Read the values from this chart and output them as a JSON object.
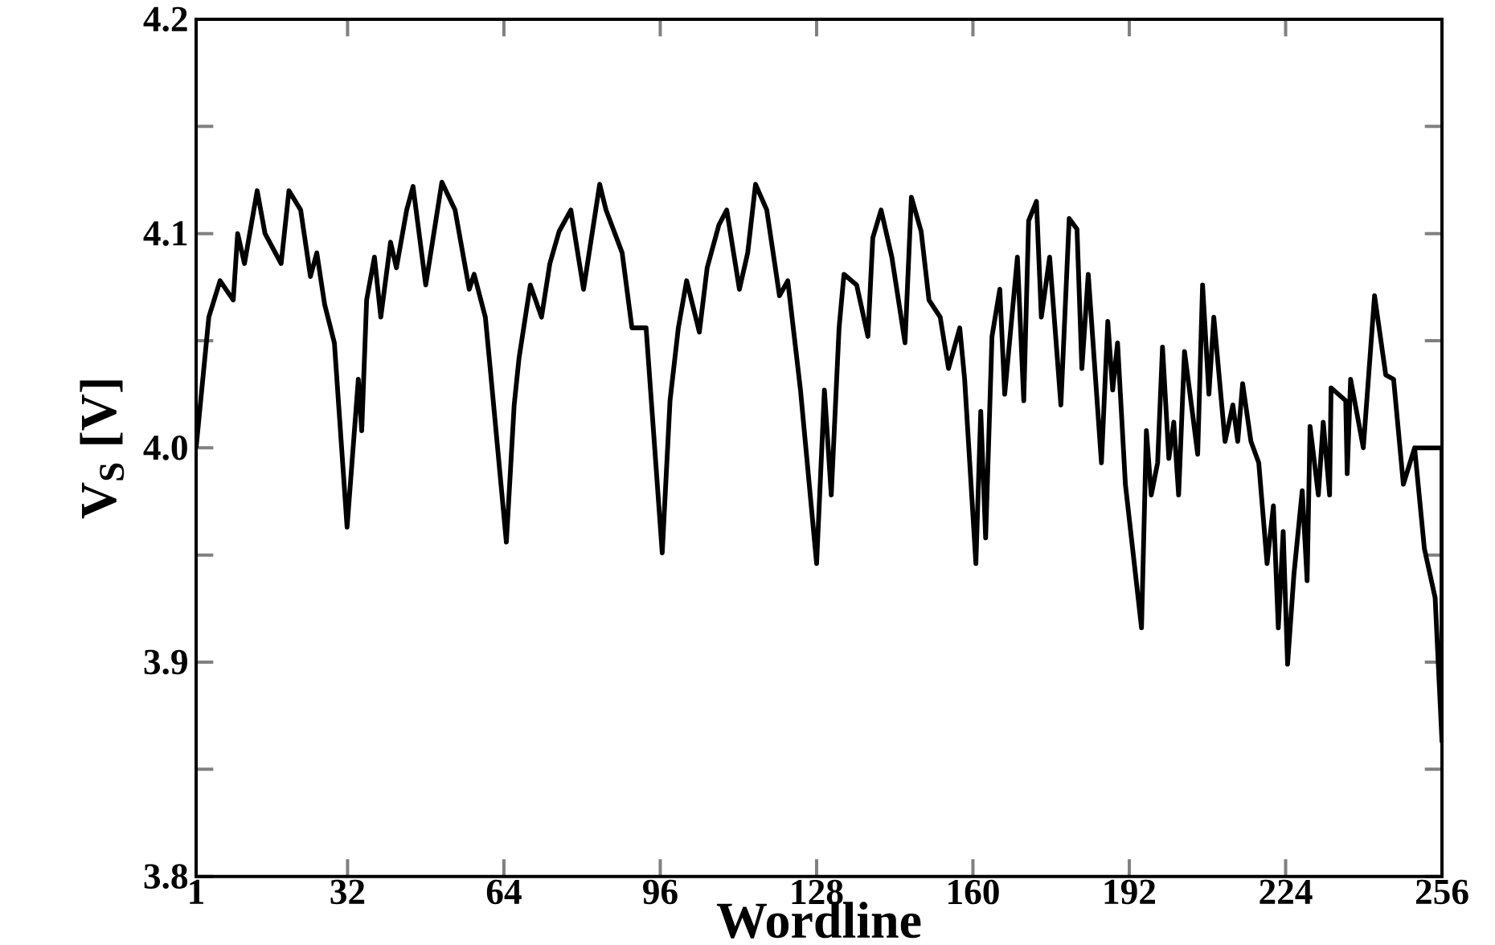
{
  "chart_data": {
    "type": "line",
    "xlabel": "Wordline",
    "ylabel": "V$_{S}$ [V]",
    "xlim": [
      1,
      256
    ],
    "ylim": [
      3.8,
      4.2
    ],
    "xticks": [
      1,
      32,
      64,
      96,
      128,
      160,
      192,
      224,
      256
    ],
    "yticks": [
      3.8,
      {
        "value": 3.85,
        "label": null
      },
      3.9,
      {
        "value": 3.95,
        "label": null
      },
      {
        "value": 4.0,
        "label": "4.0"
      },
      {
        "value": 4.05,
        "label": null
      },
      4.1,
      {
        "value": 4.15,
        "label": null
      },
      4.2
    ],
    "grid": false,
    "marker": "none",
    "line_style": "solid",
    "series": [
      {
        "color": "#000000",
        "x": [
          1,
          3.6,
          5.9,
          8.6,
          9.5,
          10.9,
          13.5,
          15.1,
          18.4,
          20,
          22.4,
          24.4,
          25.7,
          27.3,
          29.3,
          31.9,
          34.2,
          34.9,
          35.9,
          37.5,
          38.8,
          40.8,
          42,
          44.1,
          45.4,
          48,
          51.3,
          54,
          56.9,
          57.9,
          60.2,
          61.2,
          64.5,
          66.1,
          67.1,
          69.4,
          71.7,
          73.4,
          75.3,
          77.7,
          80.3,
          83.6,
          84.9,
          88.2,
          90.2,
          93.1,
          96.4,
          98,
          99.7,
          101.4,
          104,
          105.6,
          108,
          109.6,
          112.2,
          113.9,
          115.5,
          117.8,
          120.4,
          122.1,
          124.7,
          128,
          129.6,
          131,
          132.6,
          133.6,
          136.2,
          138.5,
          139.5,
          141.2,
          143.4,
          146.1,
          147.4,
          149.4,
          151,
          153.3,
          155,
          157.3,
          158.3,
          160.6,
          161.6,
          162.6,
          163.9,
          165.5,
          166.5,
          169.1,
          170.4,
          171.4,
          173,
          174,
          175.7,
          178,
          179.7,
          181.3,
          182.3,
          183.6,
          186.3,
          187.6,
          188.6,
          189.6,
          191.2,
          194.5,
          195.5,
          196.5,
          197.8,
          198.8,
          200.1,
          201.1,
          202.1,
          203.3,
          205,
          206,
          207,
          208.3,
          209.3,
          211.6,
          213.2,
          214.2,
          215.2,
          216.9,
          218.5,
          220.2,
          221.5,
          222.5,
          223.5,
          224.4,
          225.7,
          227.4,
          228.4,
          229,
          230.7,
          231.7,
          233,
          233.3,
          236.3,
          236.6,
          237.3,
          239.9,
          242.2,
          244.5,
          246.1,
          248.1,
          250.4,
          252.4,
          254.6,
          256,
          256,
          250.4
        ],
        "values": [
          4.0,
          4.061,
          4.078,
          4.069,
          4.1,
          4.086,
          4.12,
          4.1,
          4.086,
          4.12,
          4.111,
          4.08,
          4.091,
          4.067,
          4.049,
          3.963,
          4.032,
          4.008,
          4.069,
          4.089,
          4.061,
          4.096,
          4.084,
          4.111,
          4.122,
          4.076,
          4.124,
          4.111,
          4.074,
          4.081,
          4.061,
          4.037,
          3.956,
          4.02,
          4.042,
          4.076,
          4.061,
          4.086,
          4.101,
          4.111,
          4.074,
          4.123,
          4.111,
          4.091,
          4.056,
          4.056,
          3.951,
          4.022,
          4.056,
          4.078,
          4.054,
          4.084,
          4.104,
          4.111,
          4.074,
          4.091,
          4.123,
          4.111,
          4.071,
          4.078,
          4.027,
          3.946,
          4.027,
          3.978,
          4.056,
          4.081,
          4.076,
          4.052,
          4.098,
          4.111,
          4.089,
          4.049,
          4.117,
          4.101,
          4.069,
          4.061,
          4.037,
          4.056,
          4.032,
          3.946,
          4.017,
          3.958,
          4.052,
          4.074,
          4.025,
          4.089,
          4.022,
          4.106,
          4.115,
          4.061,
          4.089,
          4.02,
          4.107,
          4.102,
          4.037,
          4.081,
          3.993,
          4.059,
          4.027,
          4.049,
          3.983,
          3.916,
          4.008,
          3.978,
          3.993,
          4.047,
          3.995,
          4.012,
          3.978,
          4.045,
          4.015,
          3.997,
          4.076,
          4.025,
          4.061,
          4.003,
          4.02,
          4.003,
          4.03,
          4.003,
          3.993,
          3.946,
          3.973,
          3.916,
          3.961,
          3.899,
          3.941,
          3.98,
          3.938,
          4.01,
          3.978,
          4.012,
          3.978,
          4.028,
          4.022,
          3.988,
          4.032,
          4.0,
          4.071,
          4.034,
          4.032,
          3.983,
          4.0,
          3.953,
          3.93,
          3.863,
          4.0,
          4.0
        ]
      }
    ]
  }
}
